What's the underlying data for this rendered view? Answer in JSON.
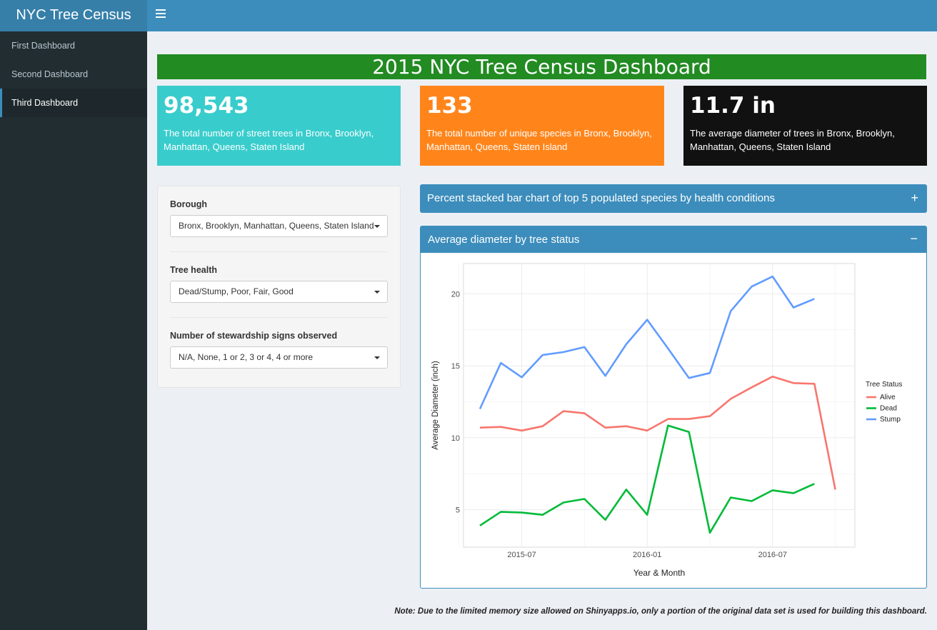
{
  "app": {
    "title": "NYC Tree Census"
  },
  "sidebar": {
    "items": [
      {
        "label": "First Dashboard",
        "active": false
      },
      {
        "label": "Second Dashboard",
        "active": false
      },
      {
        "label": "Third Dashboard",
        "active": true
      }
    ]
  },
  "banner": {
    "title": "2015 NYC Tree Census Dashboard",
    "color": "#228b22"
  },
  "value_boxes": [
    {
      "value": "98,543",
      "subtitle": "The total number of street trees in Bronx, Brooklyn, Manhattan, Queens, Staten Island",
      "color": "#39cccc"
    },
    {
      "value": "133",
      "subtitle": "The total number of unique species in Bronx, Brooklyn, Manhattan, Queens, Staten Island",
      "color": "#ff851b"
    },
    {
      "value": "11.7 in",
      "subtitle": "The average diameter of trees in Bronx, Brooklyn, Manhattan, Queens, Staten Island",
      "color": "#111111"
    }
  ],
  "filters": {
    "borough": {
      "label": "Borough",
      "value": "Bronx, Brooklyn, Manhattan, Queens, Staten Island"
    },
    "health": {
      "label": "Tree health",
      "value": "Dead/Stump, Poor, Fair, Good"
    },
    "steward": {
      "label": "Number of stewardship signs observed",
      "value": "N/A, None, 1 or 2, 3 or 4, 4 or more"
    }
  },
  "boxes": {
    "collapsed": {
      "title": "Percent stacked bar chart of top 5 populated species by health conditions",
      "tool": "+"
    },
    "chart": {
      "title": "Average diameter by tree status",
      "tool": "−"
    }
  },
  "note": "Note: Due to the limited memory size allowed on Shinyapps.io, only a portion of the original data set is used for building this dashboard.",
  "chart_data": {
    "type": "line",
    "xlabel": "Year & Month",
    "ylabel": "Average Diameter (inch)",
    "x": [
      "2015-05",
      "2015-06",
      "2015-07",
      "2015-08",
      "2015-09",
      "2015-10",
      "2015-11",
      "2015-12",
      "2016-01",
      "2016-02",
      "2016-03",
      "2016-04",
      "2016-05",
      "2016-06",
      "2016-07",
      "2016-08",
      "2016-09",
      "2016-10"
    ],
    "xticks": [
      "2015-07",
      "2016-01",
      "2016-07"
    ],
    "yticks": [
      5,
      10,
      15,
      20
    ],
    "ylim": [
      2.4,
      22.1
    ],
    "legend_title": "Tree Status",
    "legend_position": "right",
    "grid": true,
    "series": [
      {
        "name": "Alive",
        "color": "#f8766d",
        "values": [
          10.7,
          10.75,
          10.5,
          10.8,
          11.85,
          11.7,
          10.7,
          10.8,
          10.5,
          11.3,
          11.3,
          11.5,
          12.7,
          13.5,
          14.25,
          13.8,
          13.75,
          6.4
        ]
      },
      {
        "name": "Dead",
        "color": "#00ba38",
        "values": [
          3.9,
          4.85,
          4.8,
          4.65,
          5.5,
          5.75,
          4.3,
          6.4,
          4.65,
          10.85,
          10.4,
          3.4,
          5.85,
          5.6,
          6.35,
          6.15,
          6.8,
          null
        ]
      },
      {
        "name": "Stump",
        "color": "#619cff",
        "values": [
          12.0,
          15.2,
          14.2,
          15.75,
          15.95,
          16.3,
          14.3,
          16.5,
          18.2,
          16.2,
          14.15,
          14.5,
          18.8,
          20.5,
          21.2,
          19.05,
          19.65,
          null
        ]
      }
    ]
  }
}
